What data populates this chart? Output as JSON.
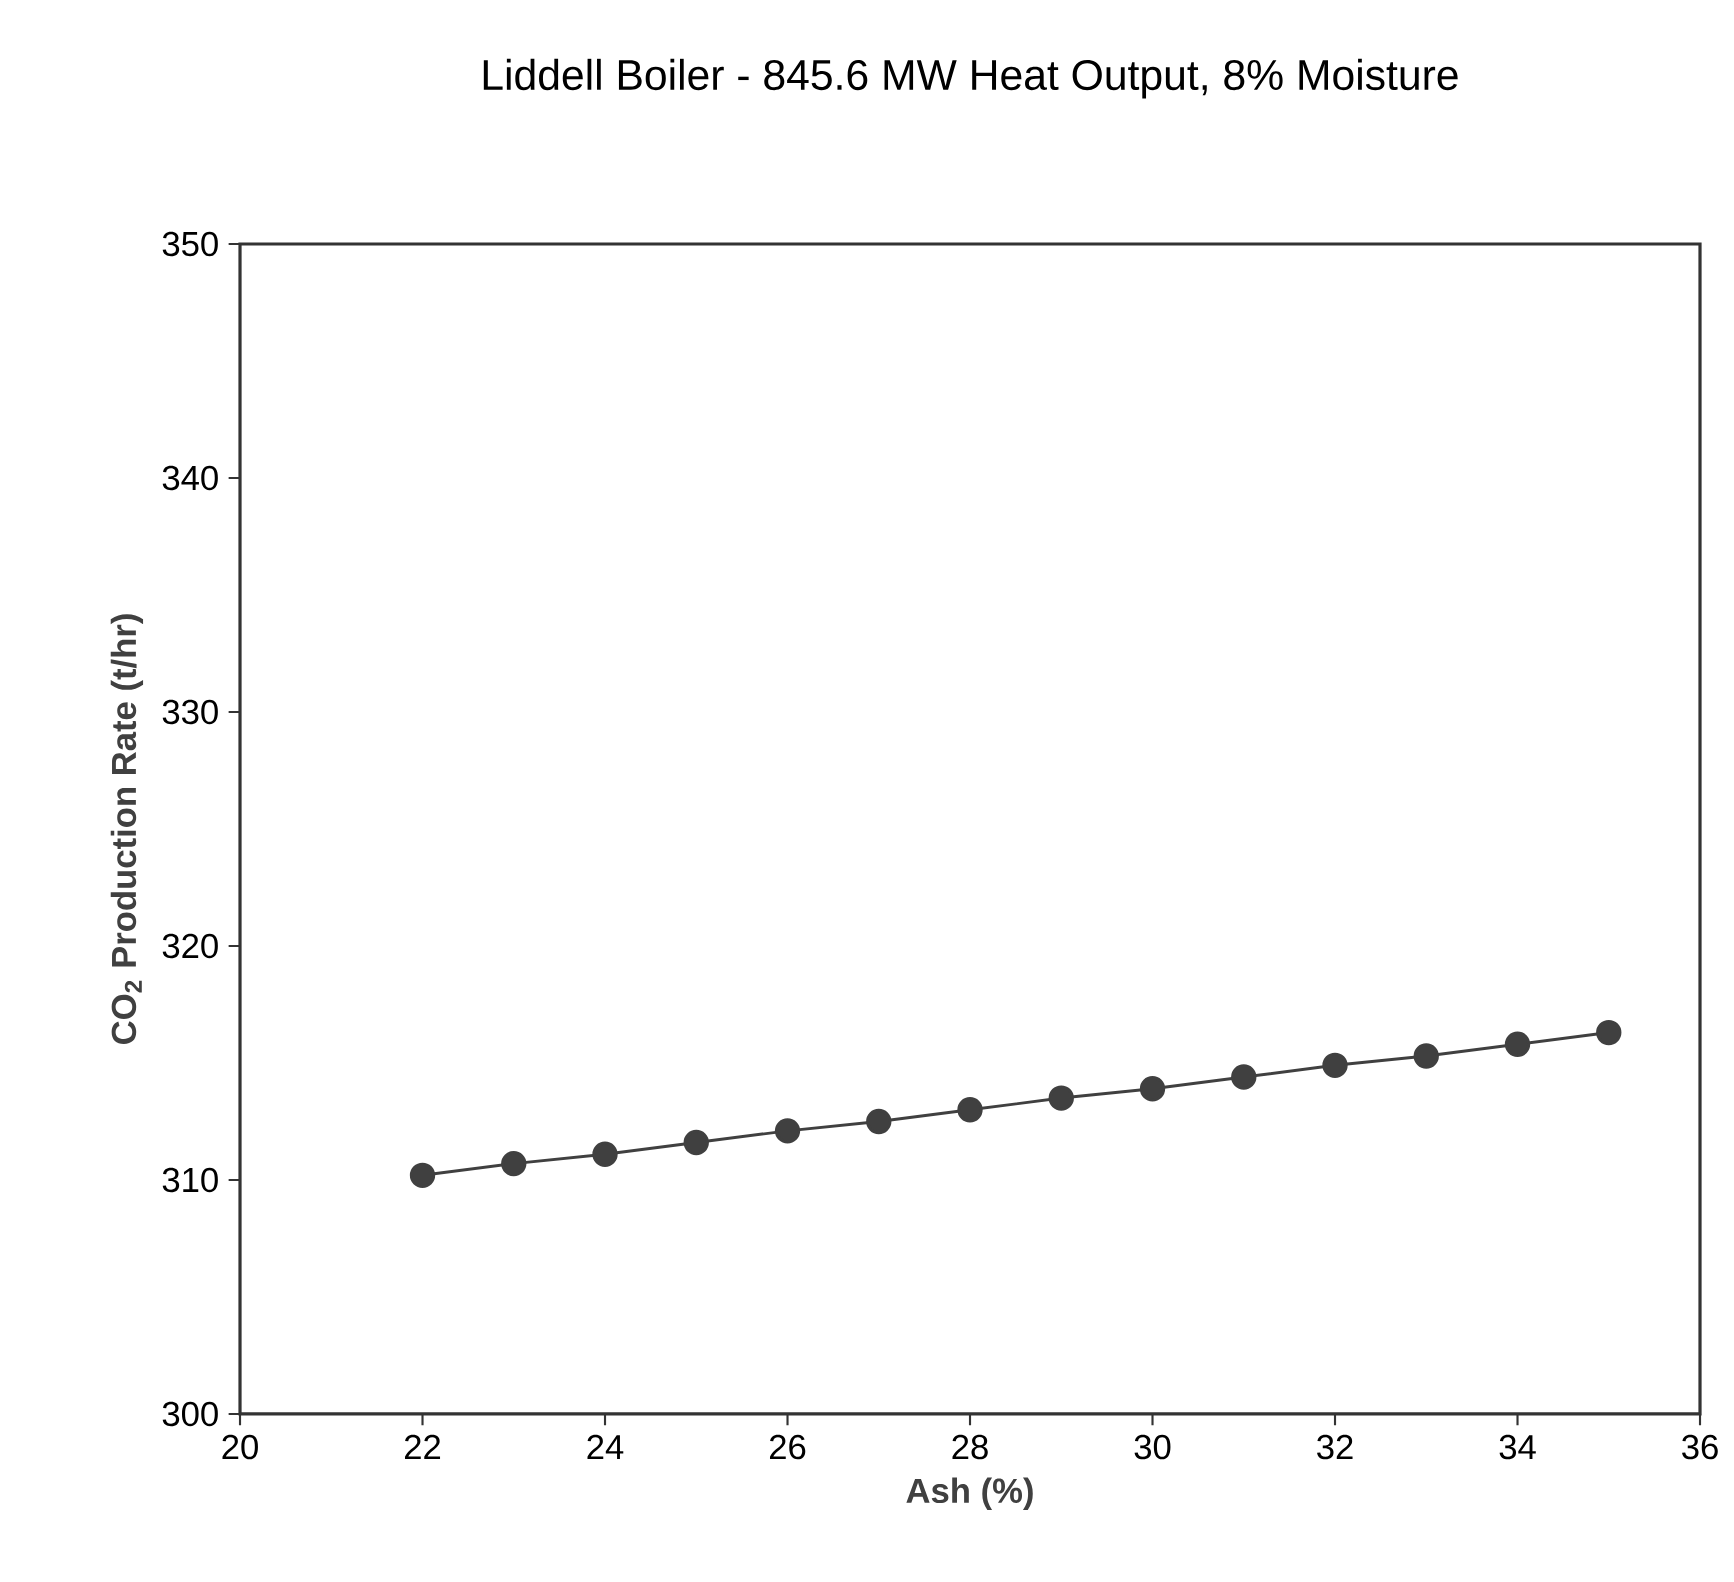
{
  "chart_data": {
    "type": "line",
    "title": "Liddell Boiler - 845.6 MW Heat Output, 8% Moisture",
    "xlabel": "Ash (%)",
    "ylabel": "CO$_{2}$ Production Rate (t/hr)",
    "x": [
      22,
      23,
      24,
      25,
      26,
      27,
      28,
      29,
      30,
      31,
      32,
      33,
      34,
      35
    ],
    "series": [
      {
        "color": "#404040",
        "values": [
          310.2,
          310.7,
          311.1,
          311.6,
          312.1,
          312.5,
          313.0,
          313.5,
          313.9,
          314.4,
          314.9,
          315.3,
          315.8,
          316.3
        ]
      }
    ],
    "xlim": [
      20,
      36
    ],
    "xticks": [
      20,
      22,
      24,
      26,
      28,
      30,
      32,
      34,
      36
    ],
    "ylim": [
      300,
      350
    ],
    "yticks": [
      300,
      310,
      320,
      330,
      340,
      350
    ],
    "grid": false,
    "marker": "circle",
    "line_style": "solid"
  }
}
